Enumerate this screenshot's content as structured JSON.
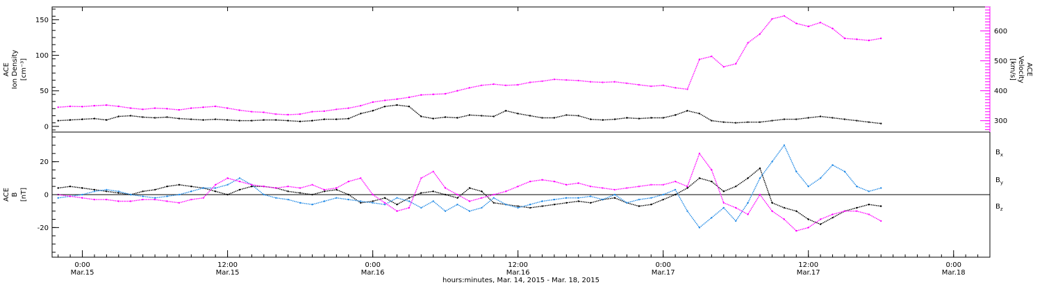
{
  "chart_data": [
    {
      "type": "scatter",
      "panel": "top",
      "ylabel_left": [
        "ACE",
        "Ion Density",
        "[cm⁻³]"
      ],
      "ylabel_right": [
        "ACE",
        "Velocity",
        "[km/s]"
      ],
      "left_yticks": [
        "0",
        "50",
        "100",
        "150"
      ],
      "right_yticks": [
        "300",
        "400",
        "500",
        "600"
      ],
      "ylim_left": [
        -8,
        168
      ],
      "ylim_right": [
        262,
        680
      ],
      "series": [
        {
          "axis": "left",
          "color": "#000000",
          "x": [
            -4,
            -2,
            0,
            2,
            4,
            6,
            8,
            10,
            12,
            14,
            16,
            18,
            20,
            22,
            24,
            26,
            28,
            30,
            32,
            34,
            36,
            38,
            40,
            42,
            44,
            46,
            48,
            50,
            52,
            54,
            56,
            58,
            60,
            62,
            64,
            66,
            68,
            70,
            72,
            74,
            76,
            78,
            80,
            82,
            84,
            86,
            88,
            90,
            92,
            94,
            96,
            98,
            100,
            102,
            104,
            106,
            108,
            110,
            112,
            114,
            116,
            118,
            120,
            122,
            124,
            126,
            128,
            130,
            132
          ],
          "y": [
            8,
            9,
            10,
            11,
            9,
            14,
            15,
            13,
            12,
            13,
            11,
            10,
            9,
            10,
            9,
            8,
            8,
            9,
            9,
            8,
            7,
            8,
            10,
            10,
            11,
            18,
            22,
            28,
            30,
            28,
            14,
            11,
            13,
            12,
            16,
            15,
            14,
            22,
            18,
            15,
            12,
            12,
            16,
            15,
            10,
            9,
            10,
            12,
            11,
            12,
            12,
            16,
            22,
            18,
            8,
            6,
            5,
            6,
            6,
            8,
            10,
            10,
            12,
            14,
            12,
            10,
            8,
            6,
            4
          ]
        },
        {
          "axis": "right",
          "color": "#ff00ff",
          "x": [
            -4,
            -2,
            0,
            2,
            4,
            6,
            8,
            10,
            12,
            14,
            16,
            18,
            20,
            22,
            24,
            26,
            28,
            30,
            32,
            34,
            36,
            38,
            40,
            42,
            44,
            46,
            48,
            50,
            52,
            54,
            56,
            58,
            60,
            62,
            64,
            66,
            68,
            70,
            72,
            74,
            76,
            78,
            80,
            82,
            84,
            86,
            88,
            90,
            92,
            94,
            96,
            98,
            100,
            102,
            104,
            106,
            108,
            110,
            112,
            114,
            116,
            118,
            120,
            122,
            124,
            126,
            128,
            130,
            132
          ],
          "y": [
            345,
            348,
            347,
            350,
            352,
            348,
            342,
            338,
            342,
            340,
            336,
            342,
            345,
            348,
            342,
            335,
            330,
            328,
            322,
            320,
            322,
            330,
            332,
            338,
            342,
            350,
            362,
            368,
            372,
            378,
            386,
            388,
            390,
            400,
            410,
            418,
            422,
            418,
            420,
            428,
            432,
            438,
            436,
            434,
            430,
            428,
            430,
            425,
            420,
            415,
            418,
            410,
            405,
            505,
            515,
            480,
            490,
            560,
            590,
            640,
            650,
            625,
            615,
            628,
            608,
            575,
            572,
            568,
            575
          ]
        }
      ]
    },
    {
      "type": "scatter",
      "panel": "bottom",
      "ylabel_left": [
        "ACE",
        "B",
        "[nT]"
      ],
      "left_yticks": [
        "-20",
        "0",
        "20"
      ],
      "ylim": [
        -38,
        38
      ],
      "legend": [
        "Bx",
        "By",
        "Bz"
      ],
      "x": [
        -4,
        -2,
        0,
        2,
        4,
        6,
        8,
        10,
        12,
        14,
        16,
        18,
        20,
        22,
        24,
        26,
        28,
        30,
        32,
        34,
        36,
        38,
        40,
        42,
        44,
        46,
        48,
        50,
        52,
        54,
        56,
        58,
        60,
        62,
        64,
        66,
        68,
        70,
        72,
        74,
        76,
        78,
        80,
        82,
        84,
        86,
        88,
        90,
        92,
        94,
        96,
        98,
        100,
        102,
        104,
        106,
        108,
        110,
        112,
        114,
        116,
        118,
        120,
        122,
        124,
        126,
        128,
        130,
        132
      ],
      "series": [
        {
          "name": "Bx",
          "color": "#000000",
          "y": [
            4,
            5,
            4,
            3,
            2,
            1,
            0,
            2,
            3,
            5,
            6,
            5,
            4,
            2,
            0,
            3,
            5,
            5,
            4,
            2,
            1,
            0,
            2,
            3,
            0,
            -5,
            -4,
            -2,
            -6,
            -2,
            1,
            2,
            0,
            -2,
            4,
            2,
            -5,
            -6,
            -7,
            -8,
            -7,
            -6,
            -5,
            -4,
            -5,
            -3,
            -2,
            -5,
            -7,
            -6,
            -3,
            0,
            4,
            10,
            8,
            2,
            5,
            10,
            16,
            -5,
            -8,
            -10,
            -15,
            -18,
            -14,
            -10,
            -8,
            -6,
            -7
          ]
        },
        {
          "name": "By",
          "color": "#1e88e5",
          "y": [
            -2,
            -1,
            0,
            2,
            3,
            2,
            0,
            -1,
            -2,
            -1,
            0,
            2,
            4,
            4,
            6,
            10,
            6,
            0,
            -2,
            -3,
            -5,
            -6,
            -4,
            -2,
            -3,
            -4,
            -5,
            -6,
            -2,
            -4,
            -8,
            -4,
            -10,
            -6,
            -10,
            -8,
            -2,
            -6,
            -8,
            -6,
            -4,
            -3,
            -2,
            -2,
            -1,
            -3,
            0,
            -5,
            -3,
            -2,
            0,
            3,
            -10,
            -20,
            -14,
            -8,
            -16,
            -5,
            10,
            20,
            30,
            14,
            5,
            10,
            18,
            14,
            5,
            2,
            4
          ]
        },
        {
          "name": "Bz",
          "color": "#ff00ff",
          "y": [
            0,
            -1,
            -2,
            -3,
            -3,
            -4,
            -4,
            -3,
            -3,
            -4,
            -5,
            -3,
            -2,
            6,
            10,
            8,
            6,
            5,
            4,
            5,
            4,
            6,
            3,
            4,
            8,
            10,
            0,
            -5,
            -10,
            -8,
            10,
            14,
            4,
            0,
            -4,
            -2,
            0,
            2,
            5,
            8,
            9,
            8,
            6,
            7,
            5,
            4,
            3,
            4,
            5,
            6,
            6,
            8,
            5,
            25,
            15,
            -5,
            -8,
            -12,
            0,
            -10,
            -15,
            -22,
            -20,
            -15,
            -12,
            -10,
            -10,
            -12,
            -16
          ]
        }
      ]
    }
  ],
  "time_axis": {
    "major_ticks": [
      {
        "x": 0,
        "time": "0:00",
        "date": "Mar.15"
      },
      {
        "x": 24,
        "time": "12:00",
        "date": "Mar.15"
      },
      {
        "x": 48,
        "time": "0:00",
        "date": "Mar.16"
      },
      {
        "x": 72,
        "time": "12:00",
        "date": "Mar.16"
      },
      {
        "x": 96,
        "time": "0:00",
        "date": "Mar.17"
      },
      {
        "x": 120,
        "time": "12:00",
        "date": "Mar.17"
      },
      {
        "x": 144,
        "time": "0:00",
        "date": "Mar.18"
      }
    ],
    "xlim": [
      -5,
      150
    ],
    "xlabel": "hours:minutes, Mar. 14, 2015 - Mar. 18, 2015"
  },
  "legend_labels": [
    {
      "base": "B",
      "sub": "x",
      "color": "#000000"
    },
    {
      "base": "B",
      "sub": "y",
      "color": "#1e88e5"
    },
    {
      "base": "B",
      "sub": "z",
      "color": "#ff00ff"
    }
  ]
}
